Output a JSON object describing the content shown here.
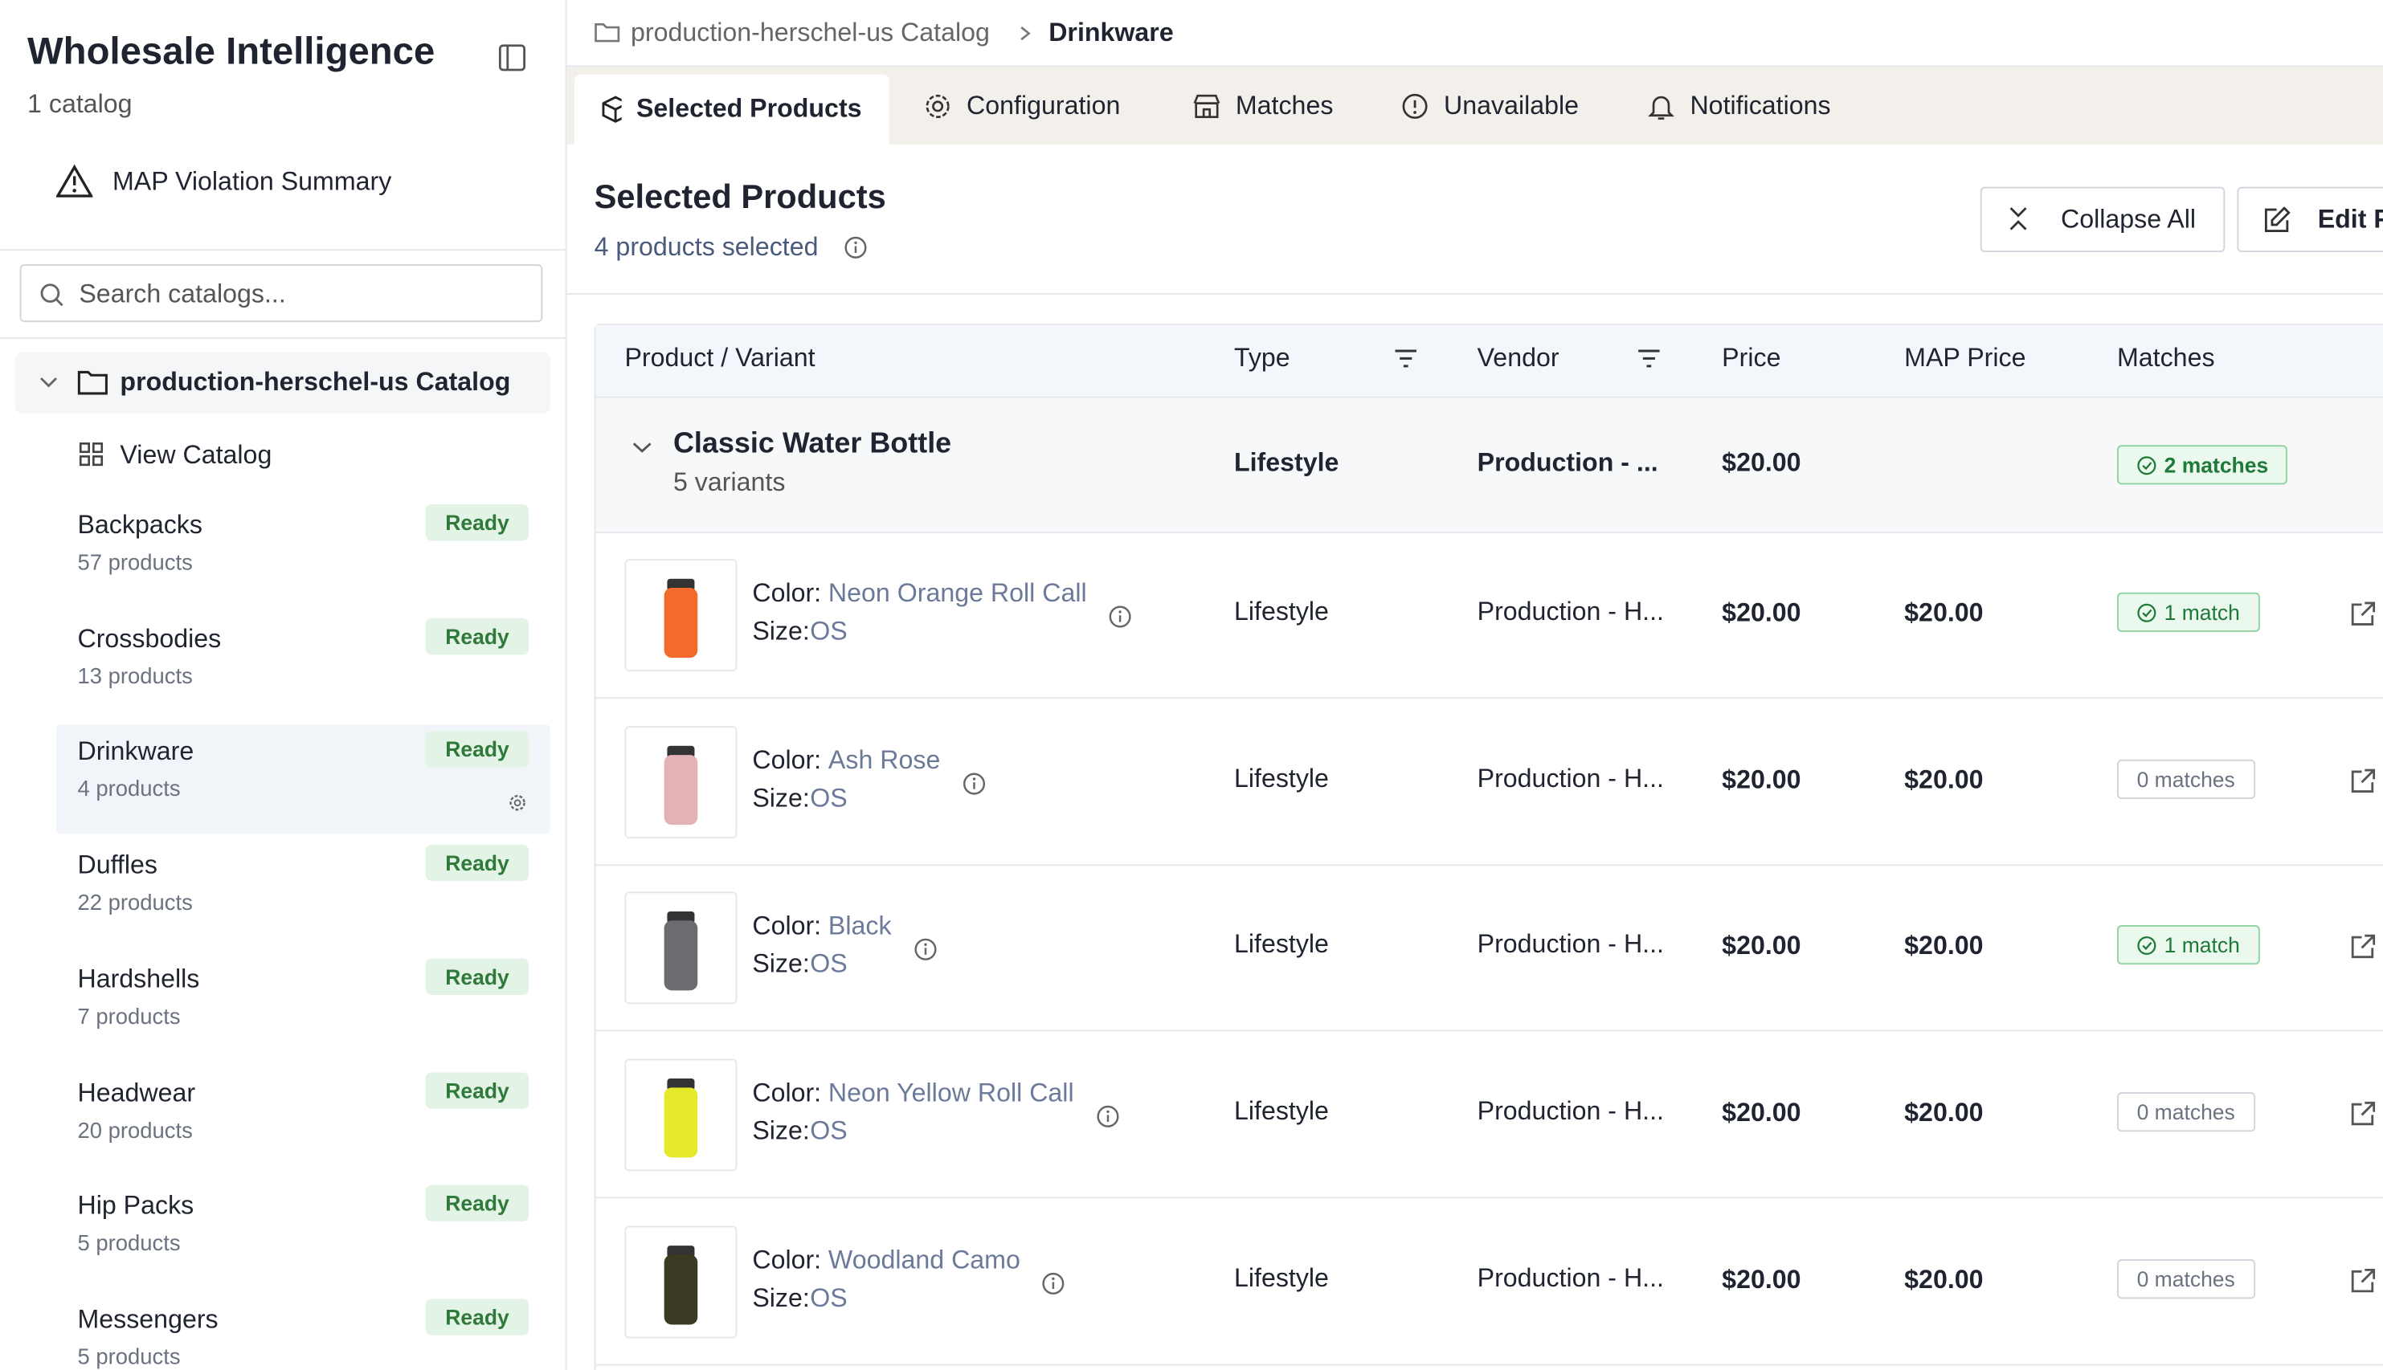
{
  "sidebar": {
    "title": "Wholesale Intelligence",
    "subtitle": "1 catalog",
    "map_link": "MAP Violation Summary",
    "search_placeholder": "Search catalogs...",
    "catalog": "production-herschel-us Catalog",
    "view_catalog": "View Catalog",
    "categories": [
      {
        "name": "Backpacks",
        "count": "57 products",
        "status": "Ready"
      },
      {
        "name": "Crossbodies",
        "count": "13 products",
        "status": "Ready"
      },
      {
        "name": "Drinkware",
        "count": "4 products",
        "status": "Ready",
        "selected": true
      },
      {
        "name": "Duffles",
        "count": "22 products",
        "status": "Ready"
      },
      {
        "name": "Hardshells",
        "count": "7 products",
        "status": "Ready"
      },
      {
        "name": "Headwear",
        "count": "20 products",
        "status": "Ready"
      },
      {
        "name": "Hip Packs",
        "count": "5 products",
        "status": "Ready"
      },
      {
        "name": "Messengers",
        "count": "5 products",
        "status": "Ready"
      }
    ]
  },
  "breadcrumb": {
    "catalog": "production-herschel-us Catalog",
    "current": "Drinkware"
  },
  "tabs": [
    "Selected Products",
    "Configuration",
    "Matches",
    "Unavailable",
    "Notifications"
  ],
  "section": {
    "title": "Selected Products",
    "subtitle": "4 products selected",
    "collapse": "Collapse All",
    "edit": "Edit P"
  },
  "table": {
    "headers": [
      "Product / Variant",
      "Type",
      "Vendor",
      "Price",
      "MAP Price",
      "Matches"
    ],
    "group": {
      "name": "Classic Water Bottle",
      "variants_label": "5 variants",
      "type": "Lifestyle",
      "vendor": "Production - ...",
      "price": "$20.00",
      "matches": "2 matches"
    },
    "variants": [
      {
        "color_label": "Color:",
        "color": "Neon Orange Roll Call",
        "size_label": "Size:",
        "size": "OS",
        "type": "Lifestyle",
        "vendor": "Production - H...",
        "price": "$20.00",
        "map": "$20.00",
        "matches": "1 match",
        "badge": "success",
        "thumb_color": "#f26b2a"
      },
      {
        "color_label": "Color:",
        "color": "Ash Rose",
        "size_label": "Size:",
        "size": "OS",
        "type": "Lifestyle",
        "vendor": "Production - H...",
        "price": "$20.00",
        "map": "$20.00",
        "matches": "0 matches",
        "badge": "neutral",
        "thumb_color": "#e2b2b6"
      },
      {
        "color_label": "Color:",
        "color": "Black",
        "size_label": "Size:",
        "size": "OS",
        "type": "Lifestyle",
        "vendor": "Production - H...",
        "price": "$20.00",
        "map": "$20.00",
        "matches": "1 match",
        "badge": "success",
        "thumb_color": "#6b6b70"
      },
      {
        "color_label": "Color:",
        "color": "Neon Yellow Roll Call",
        "size_label": "Size:",
        "size": "OS",
        "type": "Lifestyle",
        "vendor": "Production - H...",
        "price": "$20.00",
        "map": "$20.00",
        "matches": "0 matches",
        "badge": "neutral",
        "thumb_color": "#e4ea2a"
      },
      {
        "color_label": "Color:",
        "color": "Woodland Camo",
        "size_label": "Size:",
        "size": "OS",
        "type": "Lifestyle",
        "vendor": "Production - H...",
        "price": "$20.00",
        "map": "$20.00",
        "matches": "0 matches",
        "badge": "neutral",
        "thumb_color": "#3b3a22"
      }
    ]
  }
}
